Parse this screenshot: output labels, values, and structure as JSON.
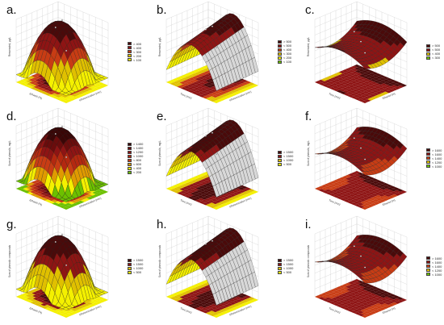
{
  "chart_data": [
    {
      "type": "surface3d",
      "panel_label": "a.",
      "zlabel": "Resveratrol, µg/L",
      "xlabel": "Ethanol (%)",
      "ylabel": "Ultrasonication (min)",
      "legend": [
        "> 400",
        "< 400",
        "< 300",
        "< 200",
        "< 100"
      ],
      "legend_colors": [
        "#4a0a0a",
        "#8e1414",
        "#c83c14",
        "#e0c000",
        "#f4f000"
      ]
    },
    {
      "type": "surface3d",
      "panel_label": "b.",
      "zlabel": "Resveratrol, µg/L",
      "xlabel": "Time (min)",
      "ylabel": "Ultrasonication (min)",
      "legend": [
        "> 500",
        "< 500",
        "< 400",
        "< 300",
        "< 200",
        "< 100"
      ],
      "legend_colors": [
        "#4a0a0a",
        "#8e1414",
        "#c83c14",
        "#e0c000",
        "#f4f000",
        "#6cc000"
      ]
    },
    {
      "type": "surface3d",
      "panel_label": "c.",
      "zlabel": "Resveratrol, µg/L",
      "xlabel": "Time (min)",
      "ylabel": "Ethanol (%)",
      "legend": [
        "> 500",
        "< 500",
        "< 400",
        "< 300"
      ],
      "legend_colors": [
        "#4a0a0a",
        "#8e1414",
        "#e0c000",
        "#6cc000"
      ]
    },
    {
      "type": "surface3d",
      "panel_label": "d.",
      "zlabel": "Sum of phenolic, mg/L",
      "xlabel": "Ethanol (%)",
      "ylabel": "Ultrasonication (min)",
      "legend": [
        "> 1400",
        "< 1400",
        "< 1200",
        "< 1000",
        "< 800",
        "< 600",
        "< 400",
        "< 200"
      ],
      "legend_colors": [
        "#3a0606",
        "#6a0c0c",
        "#8e1414",
        "#b42810",
        "#c83c14",
        "#e09a00",
        "#f4f000",
        "#6cc000"
      ]
    },
    {
      "type": "surface3d",
      "panel_label": "e.",
      "zlabel": "Sum of phenolic, mg/L",
      "xlabel": "Time (min)",
      "ylabel": "Ultrasonication (min)",
      "legend": [
        "> 1500",
        "< 1500",
        "< 1000",
        "< 500"
      ],
      "legend_colors": [
        "#4a0a0a",
        "#8e1414",
        "#e0c000",
        "#f4f000"
      ]
    },
    {
      "type": "surface3d",
      "panel_label": "f.",
      "zlabel": "Sum of phenolic, mg/L",
      "xlabel": "Time (min)",
      "ylabel": "Ethanol (%)",
      "legend": [
        "> 1600",
        "< 1600",
        "< 1400",
        "< 1200",
        "< 1000"
      ],
      "legend_colors": [
        "#4a0a0a",
        "#8e1414",
        "#c83c14",
        "#e0c000",
        "#6cc000"
      ]
    },
    {
      "type": "surface3d",
      "panel_label": "g.",
      "zlabel": "Sum of phenolic compounds",
      "xlabel": "Ethanol (%)",
      "ylabel": "Ultrasonication (min)",
      "legend": [
        "> 1500",
        "< 1500",
        "< 1000",
        "< 500"
      ],
      "legend_colors": [
        "#4a0a0a",
        "#8e1414",
        "#e0c000",
        "#f4f000"
      ]
    },
    {
      "type": "surface3d",
      "panel_label": "h.",
      "zlabel": "Sum of phenolic compounds",
      "xlabel": "Time (min)",
      "ylabel": "Ultrasonication (min)",
      "legend": [
        "> 1500",
        "< 1500",
        "< 1000",
        "< 500"
      ],
      "legend_colors": [
        "#4a0a0a",
        "#8e1414",
        "#e0c000",
        "#f4f000"
      ]
    },
    {
      "type": "surface3d",
      "panel_label": "i.",
      "zlabel": "Sum of phenolic compounds",
      "xlabel": "Time (min)",
      "ylabel": "Ethanol (%)",
      "legend": [
        "> 1600",
        "< 1600",
        "< 1400",
        "< 1200",
        "< 1000"
      ],
      "legend_colors": [
        "#4a0a0a",
        "#8e1414",
        "#c83c14",
        "#e0c000",
        "#6cc000"
      ]
    }
  ]
}
